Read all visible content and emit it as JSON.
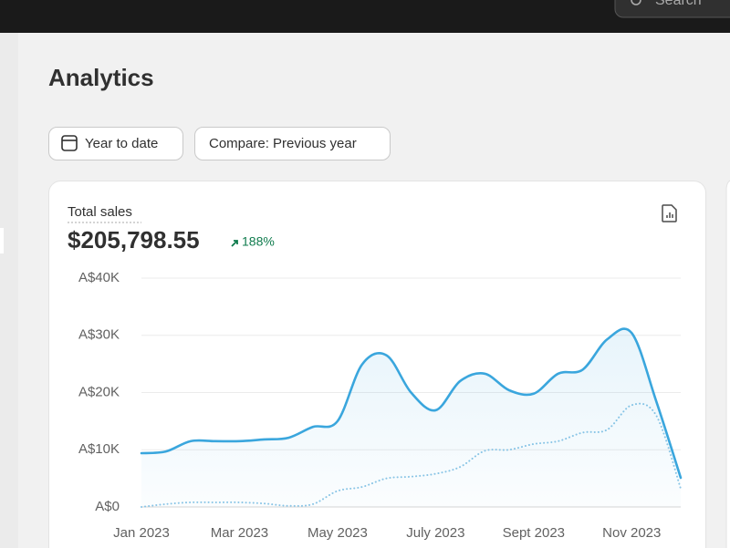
{
  "header": {
    "search": "Search"
  },
  "page": {
    "title": "Analytics",
    "filters": [
      "Year to date",
      "Compare: Previous year"
    ]
  },
  "card": {
    "label": "Total sales",
    "total": "$205,798.55",
    "change": "188%"
  },
  "chart_data": {
    "type": "line",
    "categories": [
      "Jan 2023",
      null,
      null,
      null,
      "Mar 2023",
      null,
      null,
      null,
      "May 2023",
      null,
      null,
      null,
      "July 2023",
      null,
      null,
      null,
      "Sept 2023",
      null,
      null,
      null,
      "Nov 2023",
      null,
      null
    ],
    "series": [
      {
        "color": "#3aa6dd",
        "values": [
          9400,
          9700,
          11500,
          11500,
          11500,
          11800,
          12100,
          14000,
          15000,
          24900,
          26500,
          20000,
          16900,
          22000,
          23300,
          20400,
          19800,
          23300,
          24000,
          29300,
          30400,
          18500,
          5100
        ]
      },
      {
        "color": "#8cc6e6",
        "dashed": true,
        "values": [
          0,
          500,
          800,
          800,
          800,
          600,
          200,
          500,
          2800,
          3500,
          5000,
          5300,
          5800,
          7000,
          9800,
          10000,
          11000,
          11500,
          13000,
          13500,
          17800,
          16000,
          3200
        ]
      }
    ],
    "ylim": [
      0,
      40000
    ],
    "yticks": [
      {
        "value": 0,
        "label": "A$0"
      },
      {
        "value": 10000,
        "label": "A$10K"
      },
      {
        "value": 20000,
        "label": "A$20K"
      },
      {
        "value": 30000,
        "label": "A$30K"
      },
      {
        "value": 40000,
        "label": "A$40K"
      }
    ],
    "grid": true
  }
}
